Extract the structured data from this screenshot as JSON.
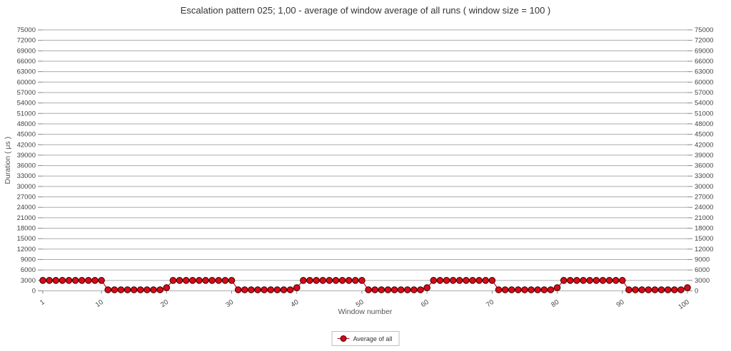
{
  "title": "Escalation pattern 025; 1,00 - average of window average of all runs ( window size = 100 )",
  "legend": {
    "label": "Average of all"
  },
  "chart_data": {
    "type": "line",
    "title": "Escalation pattern 025; 1,00 - average of window average of all runs ( window size = 100 )",
    "xlabel": "Window number",
    "ylabel": "Duration ( μs )",
    "ylim": [
      0,
      75000
    ],
    "ytick_step": 3000,
    "xticks": [
      1,
      10,
      20,
      30,
      40,
      50,
      60,
      70,
      80,
      90,
      100
    ],
    "grid": true,
    "legend_position": "bottom",
    "series": [
      {
        "name": "Average of all",
        "values": [
          3000,
          3000,
          3000,
          3000,
          3000,
          3000,
          3000,
          3000,
          3000,
          3000,
          300,
          300,
          300,
          300,
          300,
          300,
          300,
          300,
          300,
          900,
          3000,
          3000,
          3000,
          3000,
          3000,
          3000,
          3000,
          3000,
          3000,
          3000,
          300,
          300,
          300,
          300,
          300,
          300,
          300,
          300,
          300,
          900,
          3000,
          3000,
          3000,
          3000,
          3000,
          3000,
          3000,
          3000,
          3000,
          3000,
          300,
          300,
          300,
          300,
          300,
          300,
          300,
          300,
          300,
          900,
          3000,
          3000,
          3000,
          3000,
          3000,
          3000,
          3000,
          3000,
          3000,
          3000,
          300,
          300,
          300,
          300,
          300,
          300,
          300,
          300,
          300,
          900,
          3000,
          3000,
          3000,
          3000,
          3000,
          3000,
          3000,
          3000,
          3000,
          3000,
          300,
          300,
          300,
          300,
          300,
          300,
          300,
          300,
          300,
          900
        ]
      }
    ],
    "colors": {
      "marker_fill": "#d90916",
      "marker_stroke": "#330000",
      "line": "#d40018",
      "grid": "#ababab",
      "tick_label": "#444444",
      "axis_title": "#555555",
      "title": "#333333"
    }
  }
}
